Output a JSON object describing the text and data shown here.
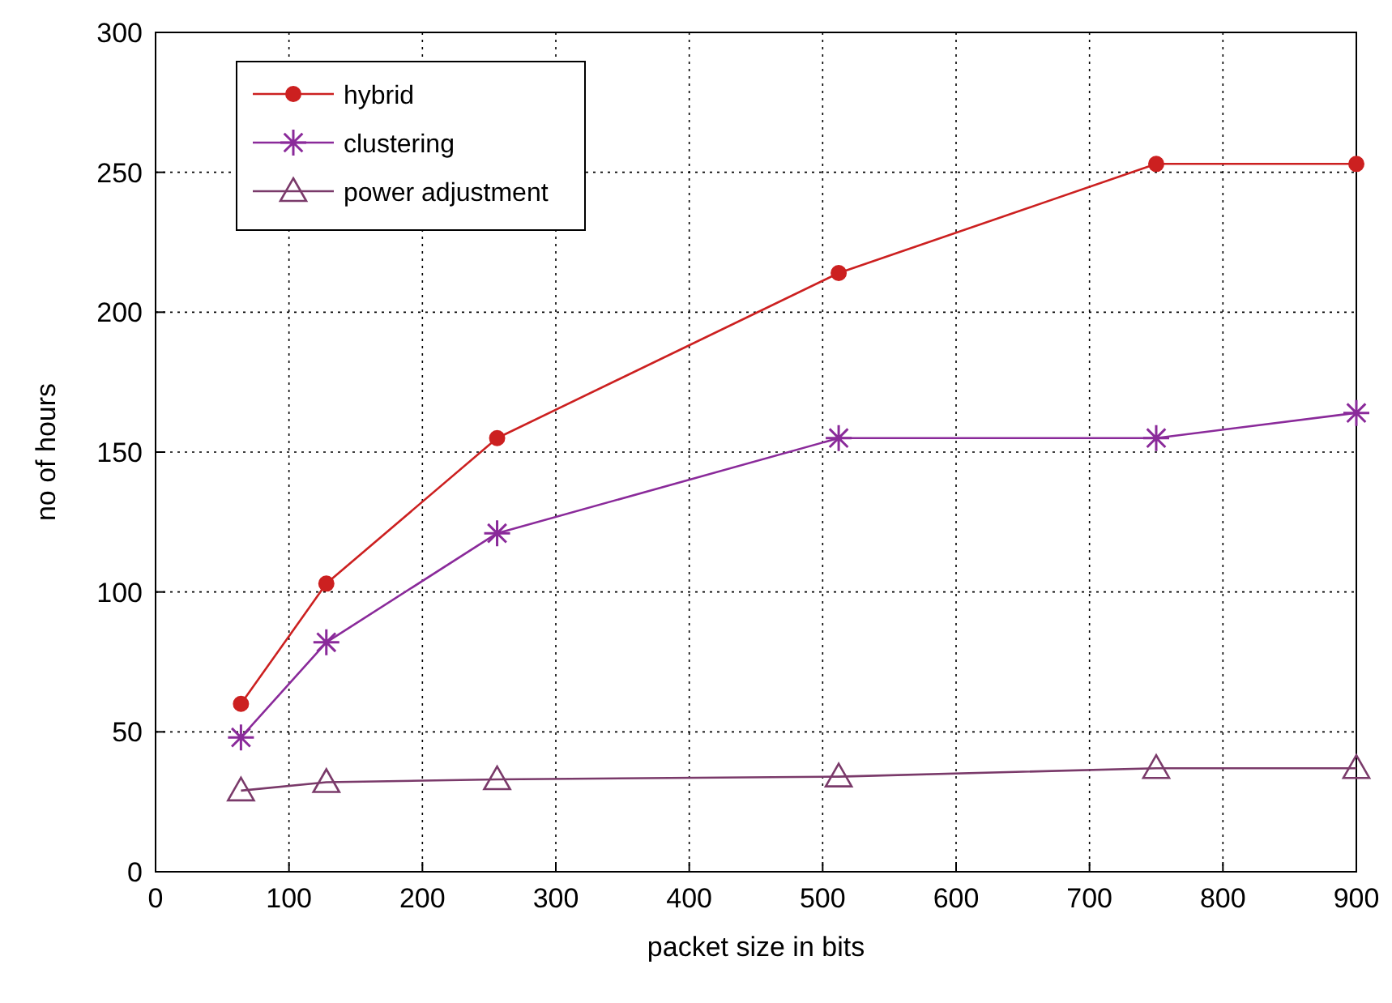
{
  "chart_data": {
    "type": "line",
    "xlabel": "packet size in bits",
    "ylabel": "no of hours",
    "xlim": [
      0,
      900
    ],
    "xticks": [
      0,
      100,
      200,
      300,
      400,
      500,
      600,
      700,
      800,
      900
    ],
    "ylim": [
      0,
      300
    ],
    "yticks": [
      0,
      50,
      100,
      150,
      200,
      250,
      300
    ],
    "grid": true,
    "legend": "top left",
    "line_style": "solid",
    "series": [
      {
        "name": "hybrid",
        "color": "#cc2020",
        "marker": "circle",
        "x": [
          64,
          128,
          256,
          512,
          750,
          900
        ],
        "values": [
          60,
          103,
          155,
          214,
          253,
          253
        ]
      },
      {
        "name": "clustering",
        "color": "#8a2a9a",
        "marker": "cross",
        "x": [
          64,
          128,
          256,
          512,
          750,
          900
        ],
        "values": [
          48,
          82,
          121,
          155,
          155,
          164
        ]
      },
      {
        "name": "power adjustment",
        "color": "#7a3a6a",
        "marker": "triangle",
        "x": [
          64,
          128,
          256,
          512,
          750,
          900
        ],
        "values": [
          29,
          32,
          33,
          34,
          37,
          37
        ]
      }
    ]
  }
}
